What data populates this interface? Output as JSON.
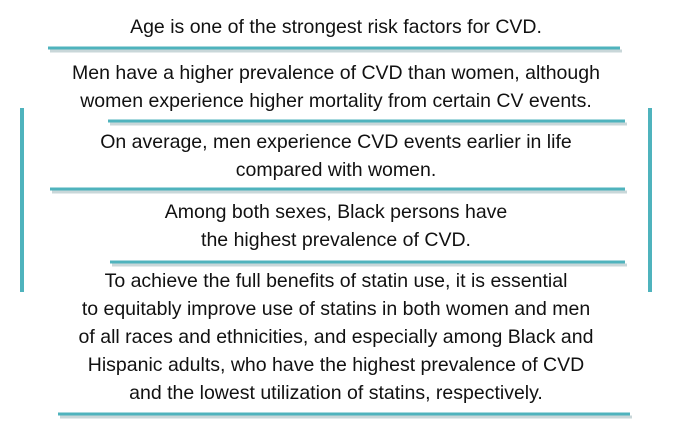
{
  "items": [
    {
      "lines": [
        "Age is one of the strongest risk factors for CVD."
      ]
    },
    {
      "lines": [
        "Men have a higher prevalence of CVD than women, although",
        "women experience higher mortality from certain CV events."
      ]
    },
    {
      "lines": [
        "On average, men experience CVD events earlier in life",
        "compared with women."
      ]
    },
    {
      "lines": [
        "Among both sexes, Black persons have",
        "the highest prevalence of CVD."
      ]
    },
    {
      "lines": [
        "To achieve the full benefits of statin use, it is essential",
        "to equitably improve use of statins in both women and men",
        "of all races and ethnicities, and especially among Black and",
        "Hispanic adults, who have the highest prevalence of CVD",
        "and the lowest utilization of statins, respectively."
      ]
    }
  ]
}
